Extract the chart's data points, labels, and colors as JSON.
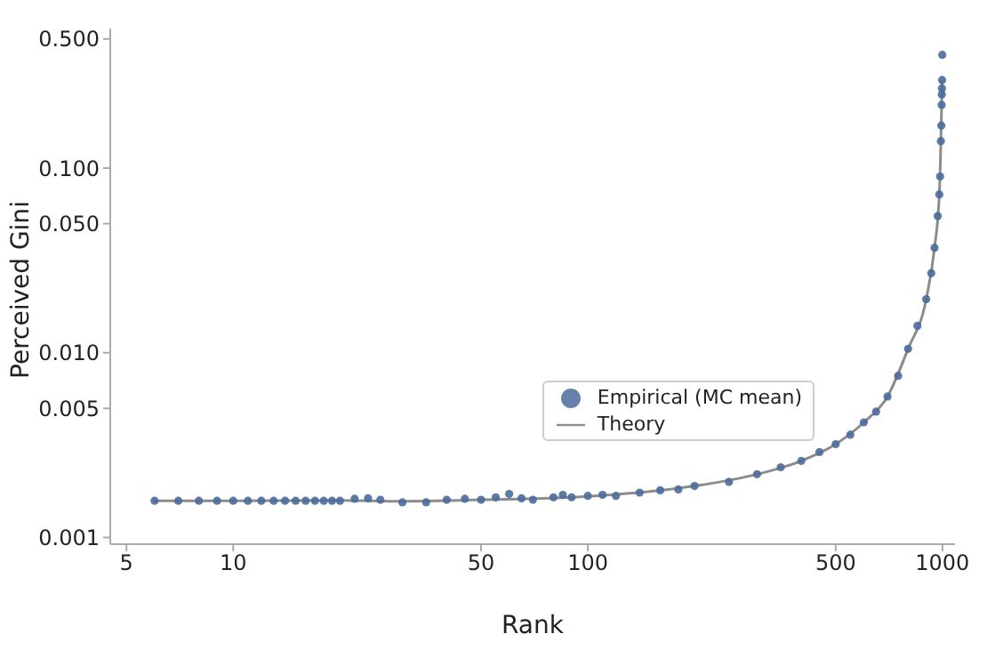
{
  "chart_data": {
    "type": "scatter",
    "xlabel": "Rank",
    "ylabel": "Perceived Gini",
    "log": "xy",
    "legend": "bottom right",
    "marker": "circle",
    "xlim": [
      4.5,
      1085
    ],
    "xticks": [
      5,
      10,
      50,
      100,
      500,
      1000
    ],
    "ylim": [
      0.00092,
      0.57
    ],
    "yticks": [
      {
        "value": 0.001,
        "label": "0.001"
      },
      {
        "value": 0.005,
        "label": "0.005"
      },
      {
        "value": 0.01,
        "label": "0.010"
      },
      {
        "value": 0.05,
        "label": "0.050"
      },
      {
        "value": 0.1,
        "label": "0.100"
      },
      {
        "value": 0.5,
        "label": "0.500"
      }
    ],
    "series": [
      {
        "name": "Empirical (MC mean)",
        "color": "#4a6b9c",
        "x": [
          6,
          7,
          8,
          9,
          10,
          11,
          12,
          13,
          14,
          15,
          16,
          17,
          18,
          19,
          20,
          22,
          24,
          26,
          30,
          35,
          40,
          45,
          50,
          55,
          60,
          65,
          70,
          80,
          85,
          90,
          100,
          110,
          120,
          140,
          160,
          180,
          200,
          250,
          300,
          350,
          400,
          450,
          500,
          550,
          600,
          650,
          700,
          750,
          800,
          850,
          900,
          930,
          950,
          970,
          980,
          985,
          990,
          993,
          995,
          996,
          997,
          998,
          999
        ],
        "values": [
          0.00158,
          0.00158,
          0.00158,
          0.00158,
          0.00158,
          0.00158,
          0.00158,
          0.00158,
          0.00158,
          0.00158,
          0.00158,
          0.00158,
          0.00158,
          0.00158,
          0.00158,
          0.00162,
          0.00163,
          0.0016,
          0.00155,
          0.00155,
          0.0016,
          0.00162,
          0.0016,
          0.00165,
          0.00172,
          0.00163,
          0.0016,
          0.00165,
          0.0017,
          0.00165,
          0.00168,
          0.0017,
          0.00168,
          0.00175,
          0.0018,
          0.00182,
          0.0019,
          0.002,
          0.0022,
          0.0024,
          0.0026,
          0.0029,
          0.0032,
          0.0036,
          0.0042,
          0.0048,
          0.0058,
          0.0075,
          0.0105,
          0.014,
          0.0195,
          0.027,
          0.037,
          0.055,
          0.072,
          0.09,
          0.14,
          0.17,
          0.22,
          0.25,
          0.27,
          0.3,
          0.41
        ]
      },
      {
        "name": "Theory",
        "type": "line",
        "color": "#8c8c8c",
        "marker": "none",
        "x": [
          6,
          10,
          20,
          30,
          50,
          100,
          200,
          300,
          400,
          500,
          600,
          700,
          800,
          900,
          950,
          980,
          990,
          995,
          998
        ],
        "values": [
          0.00158,
          0.00158,
          0.00159,
          0.00157,
          0.0016,
          0.00167,
          0.0019,
          0.0022,
          0.0026,
          0.0032,
          0.0042,
          0.0058,
          0.0105,
          0.0195,
          0.037,
          0.072,
          0.14,
          0.22,
          0.3
        ]
      }
    ]
  }
}
